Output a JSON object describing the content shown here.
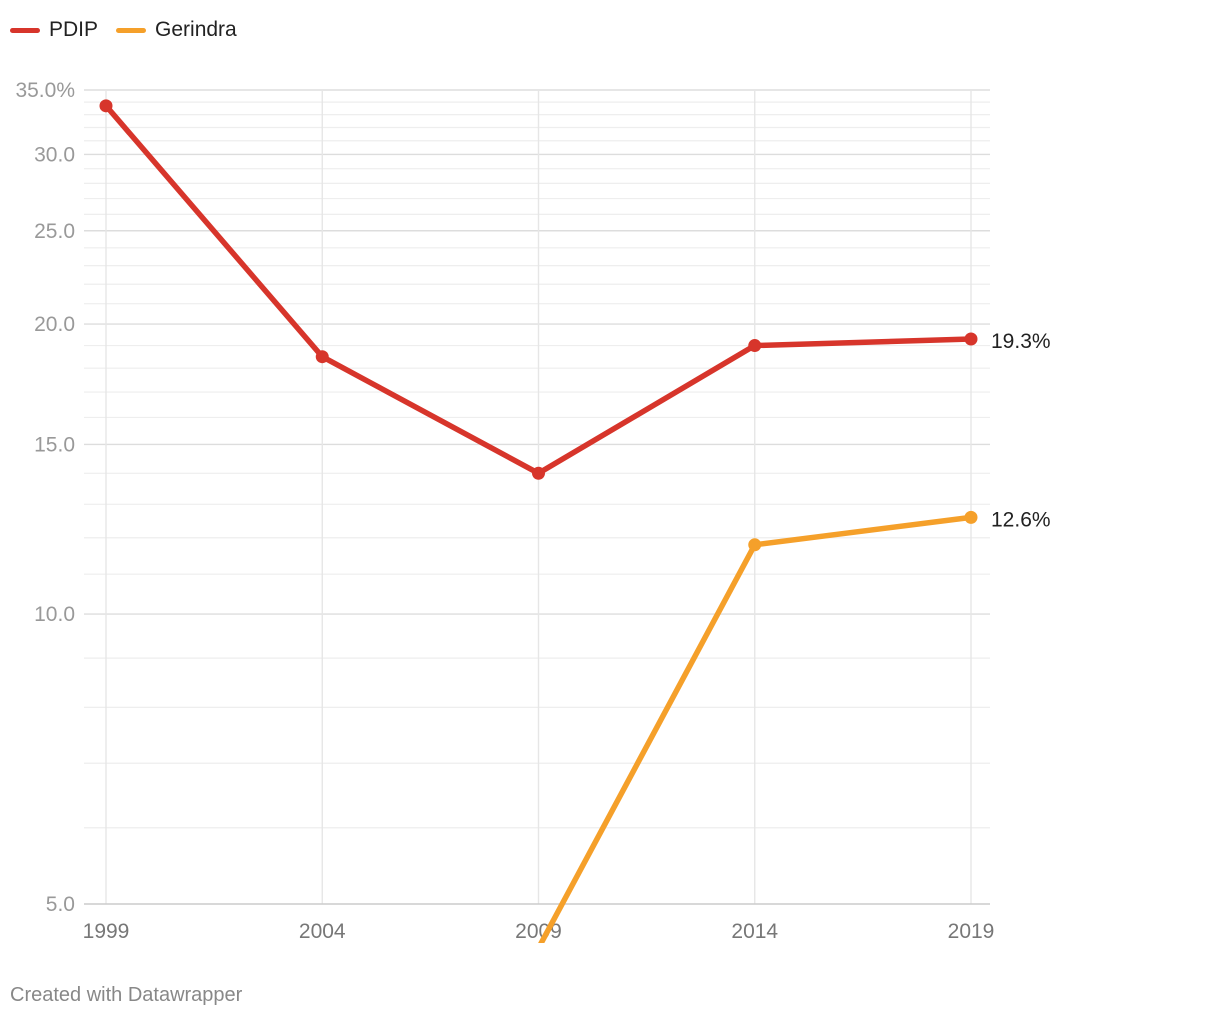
{
  "legend": {
    "items": [
      {
        "label": "PDIP",
        "color": "#d7352b"
      },
      {
        "label": "Gerindra",
        "color": "#f5a02a"
      }
    ]
  },
  "chart_data": {
    "type": "line",
    "scale": "log",
    "x": [
      1999,
      2004,
      2009,
      2014,
      2019
    ],
    "series": [
      {
        "name": "PDIP",
        "color": "#d7352b",
        "values": [
          33.7,
          18.5,
          14.0,
          19.0,
          19.3
        ],
        "end_label": "19.3%"
      },
      {
        "name": "Gerindra",
        "color": "#f5a02a",
        "values": [
          null,
          null,
          4.5,
          11.8,
          12.6
        ],
        "end_label": "12.6%"
      }
    ],
    "ylim": [
      5,
      35
    ],
    "y_ticks": [
      {
        "value": 35,
        "label": "35.0%"
      },
      {
        "value": 30,
        "label": "30.0"
      },
      {
        "value": 25,
        "label": "25.0"
      },
      {
        "value": 20,
        "label": "20.0"
      },
      {
        "value": 15,
        "label": "15.0"
      },
      {
        "value": 10,
        "label": "10.0"
      },
      {
        "value": 5,
        "label": "5.0"
      }
    ],
    "x_ticks": [
      "1999",
      "2004",
      "2009",
      "2014",
      "2019"
    ],
    "grid": true,
    "legend_position": "top-left"
  },
  "footer": {
    "credit": "Created with Datawrapper"
  }
}
